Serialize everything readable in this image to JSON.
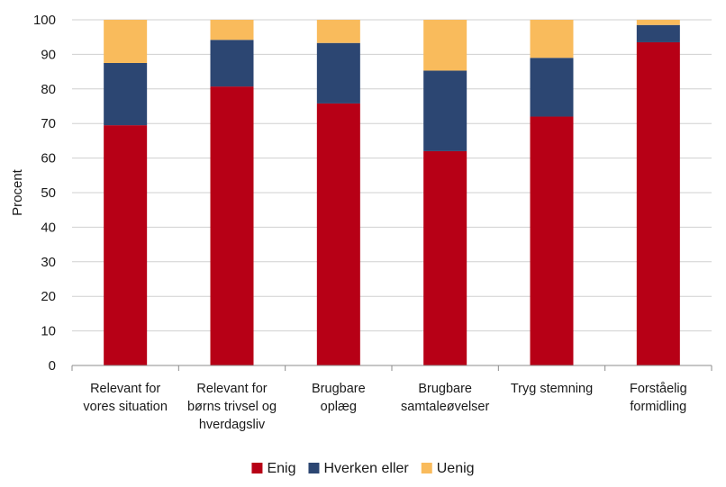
{
  "chart_data": {
    "type": "bar",
    "stacked": true,
    "categories": [
      [
        "Relevant for",
        "vores situation"
      ],
      [
        "Relevant for",
        "børns trivsel og",
        "hverdagsliv"
      ],
      [
        "Brugbare",
        "oplæg"
      ],
      [
        "Brugbare",
        "samtaleøvelser"
      ],
      [
        "Tryg stemning"
      ],
      [
        "Forståelig",
        "formidling"
      ]
    ],
    "series": [
      {
        "name": "Enig",
        "color": "#b70016",
        "values": [
          69.5,
          80.7,
          75.8,
          62.0,
          72.0,
          93.5
        ]
      },
      {
        "name": "Hverken eller",
        "color": "#2c4672",
        "values": [
          18.0,
          13.5,
          17.5,
          23.3,
          17.0,
          5.0
        ]
      },
      {
        "name": "Uenig",
        "color": "#f9bb5c",
        "values": [
          12.5,
          5.8,
          6.7,
          14.7,
          11.0,
          1.5
        ]
      }
    ],
    "ylabel": "Procent",
    "xlabel": "",
    "title": "",
    "ylim": [
      0,
      100
    ],
    "yticks": [
      0,
      10,
      20,
      30,
      40,
      50,
      60,
      70,
      80,
      90,
      100
    ],
    "grid": true,
    "legend_position": "bottom"
  }
}
